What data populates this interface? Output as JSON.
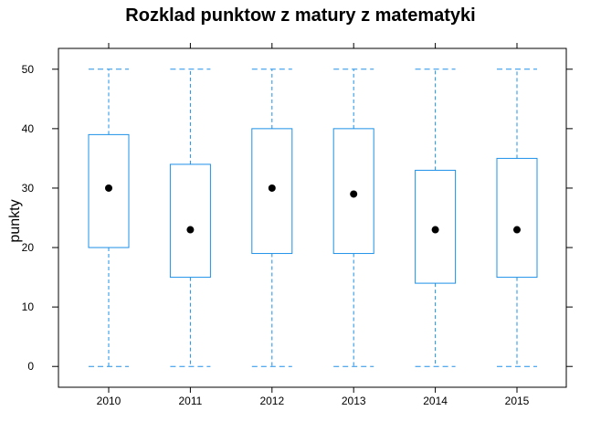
{
  "chart_data": {
    "type": "box",
    "title": "Rozklad punktow z matury z matematyki",
    "xlabel": "",
    "ylabel": "punkty",
    "categories": [
      "2010",
      "2011",
      "2012",
      "2013",
      "2014",
      "2015"
    ],
    "yticks": [
      "0",
      "10",
      "20",
      "30",
      "40",
      "50"
    ],
    "ylim": [
      -3.5,
      53.5
    ],
    "series": [
      {
        "boxes": [
          {
            "min": 0,
            "q1": 20,
            "median": 30,
            "q3": 39,
            "max": 50
          },
          {
            "min": 0,
            "q1": 15,
            "median": 23,
            "q3": 34,
            "max": 50
          },
          {
            "min": 0,
            "q1": 19,
            "median": 30,
            "q3": 40,
            "max": 50
          },
          {
            "min": 0,
            "q1": 19,
            "median": 29,
            "q3": 40,
            "max": 50
          },
          {
            "min": 0,
            "q1": 14,
            "median": 23,
            "q3": 33,
            "max": 50
          },
          {
            "min": 0,
            "q1": 15,
            "median": 23,
            "q3": 35,
            "max": 50
          }
        ]
      }
    ],
    "grid": false,
    "colors": {
      "box": "#1E90E8",
      "median_dot": "#000000",
      "frame": "#000000"
    }
  }
}
